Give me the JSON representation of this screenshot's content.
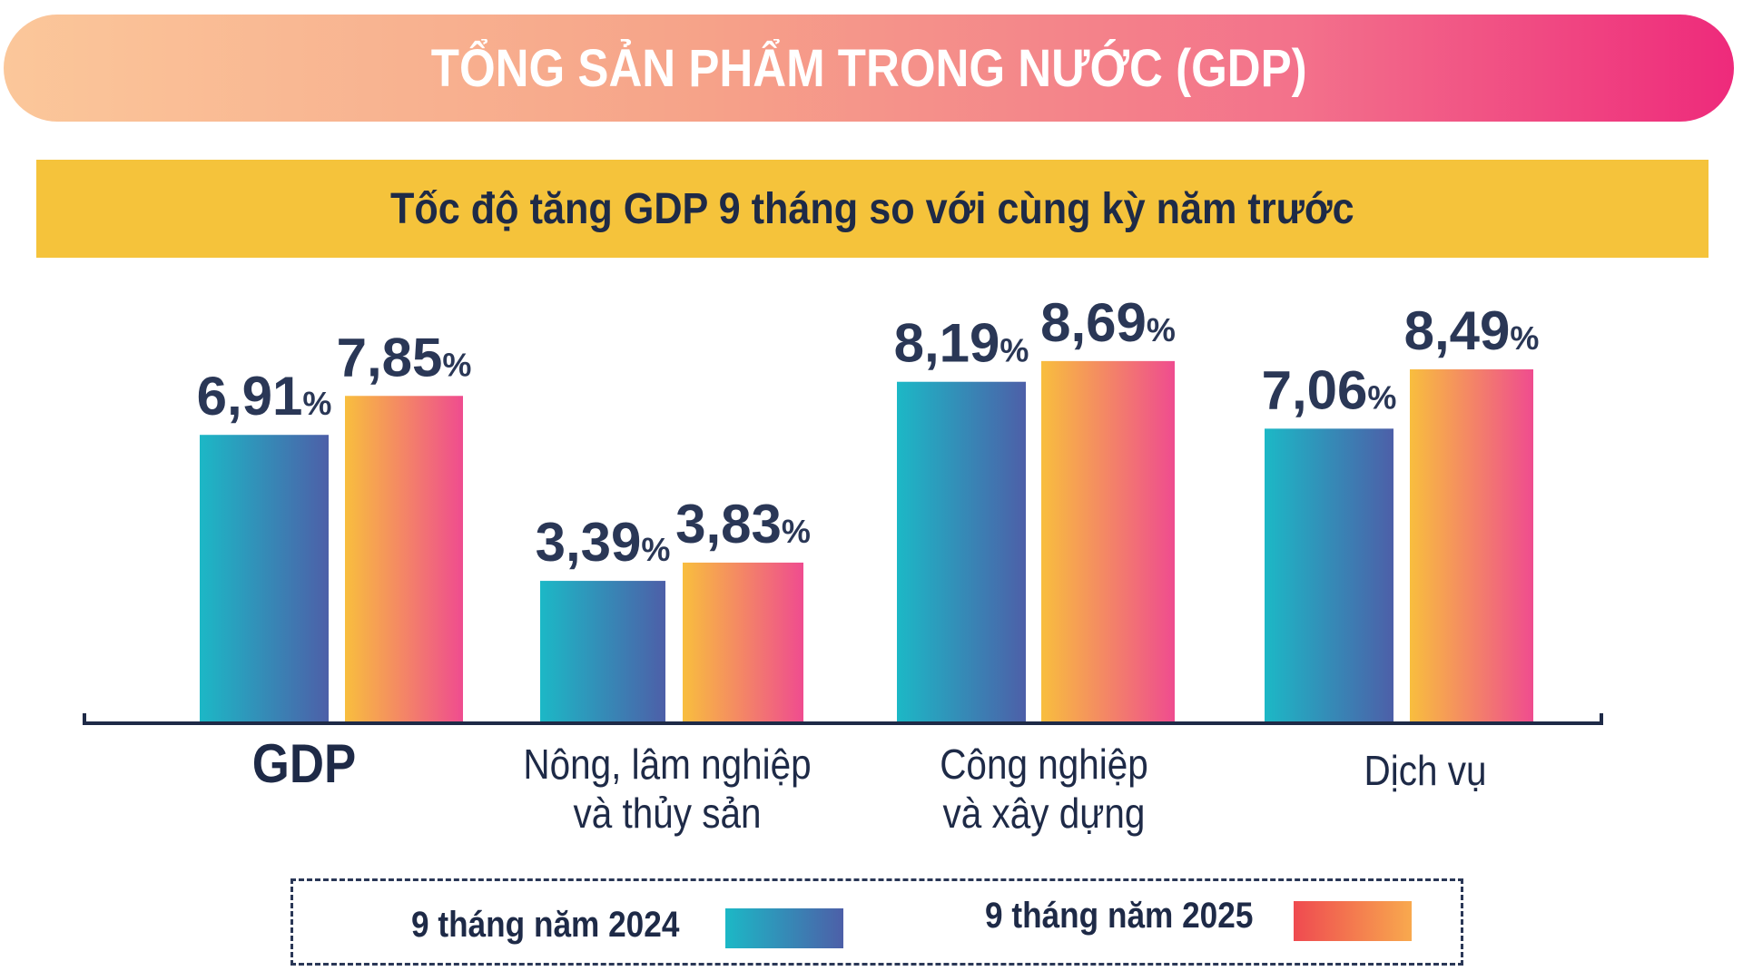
{
  "header": {
    "title": "TỔNG SẢN PHẨM TRONG NƯỚC (GDP)",
    "subtitle": "Tốc độ tăng GDP 9 tháng so với cùng kỳ năm trước"
  },
  "chart_data": {
    "type": "bar",
    "title": "Tốc độ tăng GDP 9 tháng so với cùng kỳ năm trước",
    "categories": [
      [
        "GDP"
      ],
      [
        "Nông, lâm nghiệp",
        "và thủy sản"
      ],
      [
        "Công nghiệp",
        "và xây dựng"
      ],
      [
        "Dịch vụ"
      ]
    ],
    "category_labels": {
      "gdp": "GDP",
      "agri_1": "Nông, lâm nghiệp",
      "agri_2": "và thủy sản",
      "industry_1": "Công nghiệp",
      "industry_2": "và xây dựng",
      "services": "Dịch vụ"
    },
    "series": [
      {
        "name": "9 tháng năm 2024",
        "values": [
          6.91,
          3.39,
          8.19,
          7.06
        ],
        "labels": [
          "6,91",
          "3,39",
          "8,19",
          "7,06"
        ],
        "colors": [
          "#1cb8c6",
          "#4d5fa8"
        ]
      },
      {
        "name": "9 tháng năm 2025",
        "values": [
          7.85,
          3.83,
          8.69,
          8.49
        ],
        "labels": [
          "7,85",
          "3,83",
          "8,69",
          "8,49"
        ],
        "colors": [
          "#f8be3e",
          "#ef4c8f"
        ]
      }
    ],
    "value_unit": "%",
    "ylim": [
      0,
      10
    ],
    "grid": false,
    "legend_position": "bottom"
  },
  "legend": {
    "item_2024": "9 tháng năm 2024",
    "item_2025": "9 tháng năm 2025",
    "swatch_2024_colors": [
      "#1cb8c6",
      "#4d5fa8"
    ],
    "swatch_2025_colors": [
      "#ef4a50",
      "#f8a94e"
    ]
  },
  "colors": {
    "text_dark": "#1e2a47",
    "value_text": "#2a3756",
    "subtitle_bg": "#f5c33b"
  }
}
